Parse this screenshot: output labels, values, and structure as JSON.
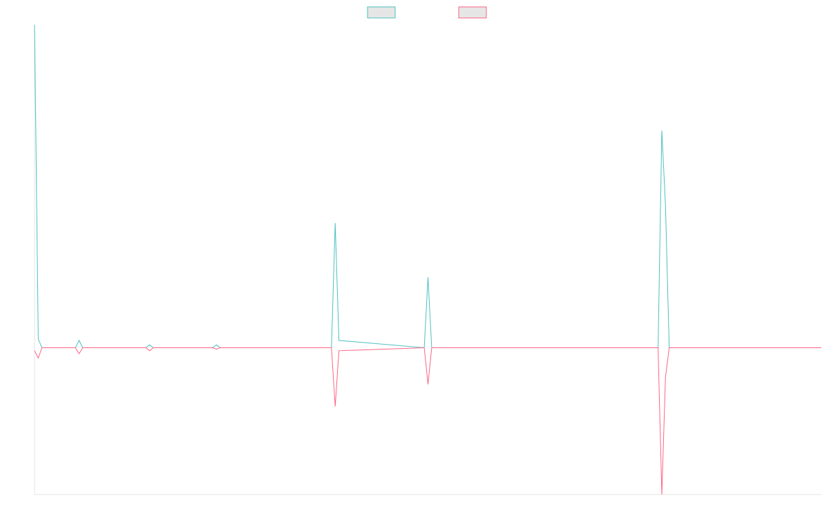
{
  "chart_data": {
    "type": "line",
    "title": "",
    "xlabel": "",
    "ylabel": "",
    "legend_position": "top-center",
    "grid": false,
    "ylim": [
      -1.0,
      2.2
    ],
    "x": [
      0,
      0.5,
      1,
      2,
      5.5,
      6,
      6.5,
      15,
      15.5,
      16,
      24,
      24.5,
      25,
      40,
      40.5,
      41,
      52.5,
      53,
      53.5,
      63,
      63.5,
      64,
      84,
      84.5,
      85,
      85.5,
      106
    ],
    "series": [
      {
        "name": "",
        "color": "#4bc0c0",
        "fill": "#e6e6e6",
        "values": [
          2.2,
          0.06,
          0.0,
          0.0,
          0.0,
          0.05,
          0.0,
          0.0,
          0.02,
          0.0,
          0.0,
          0.02,
          0.0,
          0.0,
          0.85,
          0.05,
          0.0,
          0.48,
          0.0,
          0.0,
          0.0,
          0.0,
          0.0,
          1.48,
          0.97,
          0.0,
          0.0
        ]
      },
      {
        "name": "",
        "color": "#ff6384",
        "fill": "#e6e6e6",
        "values": [
          -0.02,
          -0.07,
          0.0,
          0.0,
          0.0,
          -0.04,
          0.0,
          0.0,
          -0.02,
          0.0,
          0.0,
          -0.01,
          0.0,
          0.0,
          -0.4,
          -0.02,
          0.0,
          -0.25,
          0.0,
          0.0,
          0.0,
          0.0,
          0.0,
          -1.0,
          -0.2,
          0.0,
          0.0
        ]
      }
    ]
  }
}
